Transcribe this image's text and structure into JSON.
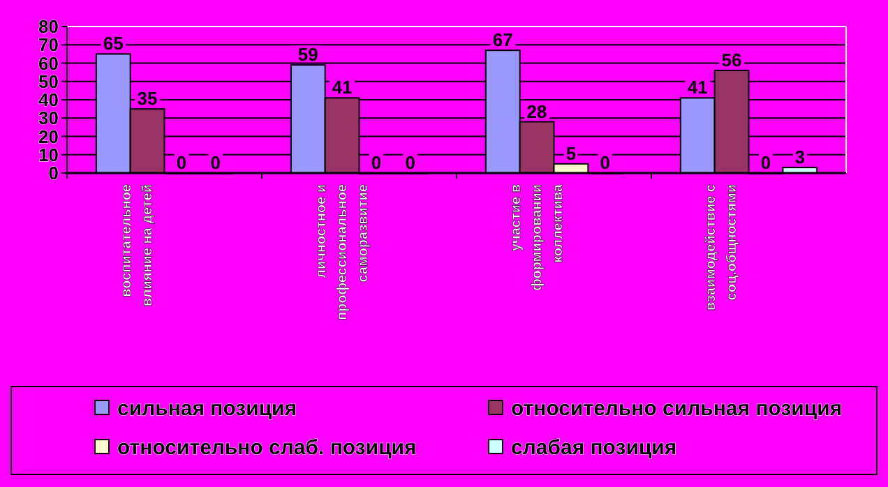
{
  "chart_data": {
    "type": "bar",
    "categories": [
      "воспитательное влияние на детей",
      "личностное и профессиональное саморазвитие",
      "участие в формировании коллектива",
      "взаимодействие с соц.общностями"
    ],
    "series": [
      {
        "name": "сильная позиция",
        "color": "#9999ff",
        "values": [
          65,
          59,
          67,
          41
        ]
      },
      {
        "name": "относительно сильная позиция",
        "color": "#993366",
        "values": [
          35,
          41,
          28,
          56
        ]
      },
      {
        "name": "относительно слаб. позиция",
        "color": "#ffffcc",
        "values": [
          0,
          0,
          5,
          0
        ]
      },
      {
        "name": "слабая позиция",
        "color": "#ccffff",
        "values": [
          0,
          0,
          0,
          3
        ]
      }
    ],
    "ylim": [
      0,
      80
    ],
    "yticks": [
      0,
      10,
      20,
      30,
      40,
      50,
      60,
      70,
      80
    ],
    "grid": "y",
    "legend": "bottom",
    "data_labels": true
  }
}
